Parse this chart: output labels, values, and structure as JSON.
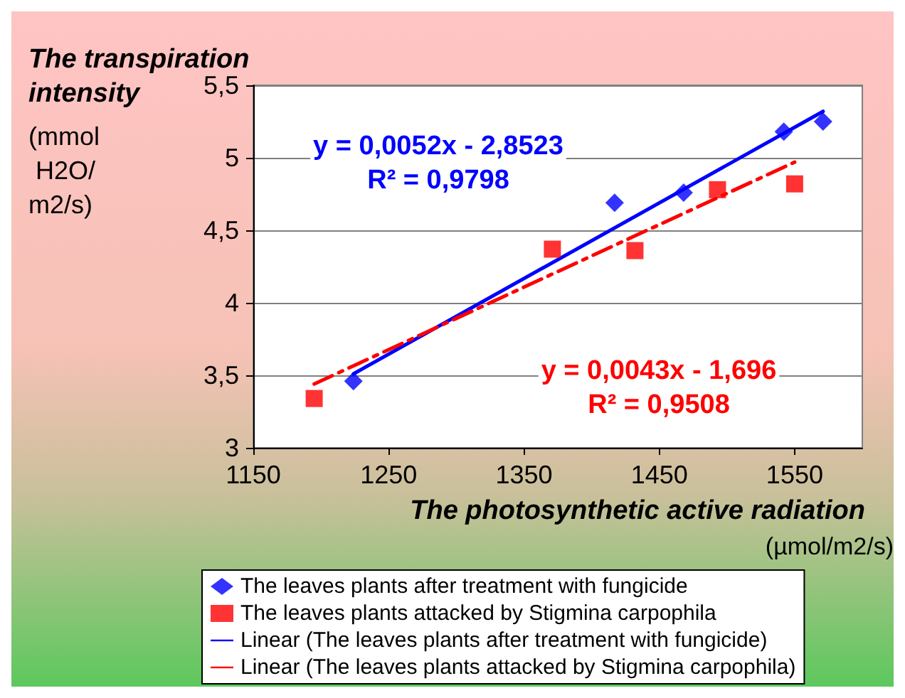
{
  "chart_data": {
    "type": "scatter",
    "xlabel": "The photosynthetic active radiation (µmol/m2/s)",
    "ylabel": "The transpiration intensity (mmol H2O/ m2/s)",
    "xlim": [
      1150,
      1600
    ],
    "xticks": [
      1150,
      1250,
      1350,
      1450,
      1550
    ],
    "ylim": [
      3,
      5.5
    ],
    "yticks": [
      3,
      {
        "value": 3.5,
        "label": "3,5"
      },
      4,
      {
        "value": 4.5,
        "label": "4,5"
      },
      5,
      {
        "value": 5.5,
        "label": "5,5"
      }
    ],
    "grid": "y",
    "legend": "bottom",
    "annotations": [
      "y = 0,0052x - 2,8523\nR² = 0,9798",
      "y = 0,0043x - 1,696\nR² = 0,9508"
    ],
    "series": [
      {
        "name": "The leaves plants after treatment with fungicide",
        "color": "#0000ff",
        "marker": "diamond",
        "x": [
          1224,
          1417,
          1468,
          1542,
          1571
        ],
        "values": [
          3.46,
          4.69,
          4.76,
          5.18,
          5.25
        ]
      },
      {
        "name": "The leaves plants attacked by Stigmina carpophila",
        "color": "#ff0000",
        "marker": "square",
        "x": [
          1195,
          1371,
          1432,
          1493,
          1550
        ],
        "values": [
          3.34,
          4.37,
          4.36,
          4.78,
          4.82
        ]
      },
      {
        "name": "Linear (The leaves plants after treatment with fungicide)",
        "type": "line",
        "color": "#0000ff",
        "line_style": "solid",
        "marker": "none",
        "x": [
          1224,
          1571
        ],
        "values": [
          3.51,
          5.32
        ]
      },
      {
        "name": "Linear (The leaves plants attacked by Stigmina carpophila)",
        "type": "line",
        "color": "#ff0000",
        "line_style": "dashed",
        "marker": "none",
        "x": [
          1195,
          1550
        ],
        "values": [
          3.44,
          4.97
        ]
      }
    ]
  }
}
